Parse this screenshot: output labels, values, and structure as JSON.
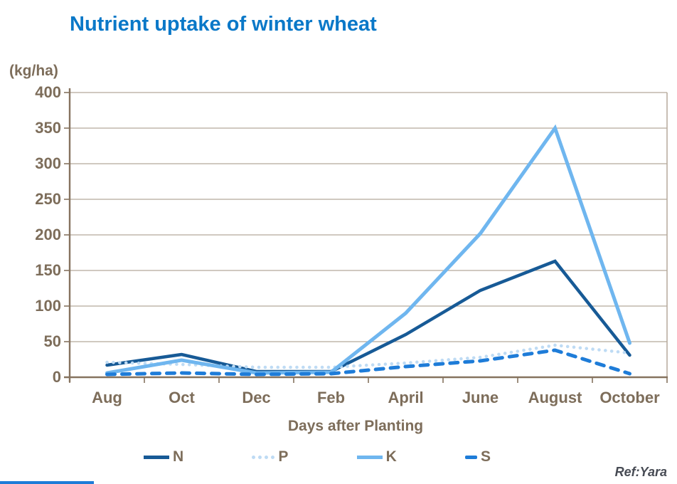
{
  "chart_data": {
    "type": "line",
    "title": "Nutrient uptake of winter wheat",
    "xlabel": "Days after Planting",
    "ylabel": "(kg/ha)",
    "categories": [
      "Aug",
      "Oct",
      "Dec",
      "Feb",
      "April",
      "June",
      "August",
      "October"
    ],
    "series": [
      {
        "name": "N",
        "color": "#175a96",
        "dash": "solid",
        "values": [
          17,
          32,
          8,
          8,
          60,
          122,
          163,
          31
        ]
      },
      {
        "name": "P",
        "color": "#bedbf4",
        "dash": "dotted",
        "values": [
          21,
          18,
          14,
          14,
          20,
          28,
          45,
          34
        ]
      },
      {
        "name": "K",
        "color": "#6fb6ef",
        "dash": "solid",
        "values": [
          6,
          24,
          6,
          7,
          90,
          202,
          350,
          48
        ]
      },
      {
        "name": "S",
        "color": "#1e7cd8",
        "dash": "dashed",
        "values": [
          4,
          6,
          4,
          5,
          15,
          23,
          38,
          5
        ]
      }
    ],
    "ylim": [
      0,
      400
    ],
    "ytick_step": 50,
    "yticks": [
      0,
      50,
      100,
      150,
      200,
      250,
      300,
      350,
      400
    ],
    "grid": true,
    "legend_position": "bottom",
    "source": "Ref:Yara"
  },
  "footer": {
    "ref": "Ref:Yara"
  },
  "colors": {
    "title_text": "#0a78c8",
    "axis_text": "#7d6d5a",
    "grid_line": "#b5a99b",
    "axis_line": "#86735f",
    "series_n": "#175a96",
    "series_p": "#bedbf4",
    "series_k": "#6fb6ef",
    "series_s": "#1e7cd8",
    "footer_line": "#1e7cd8",
    "ref_text": "#474b54"
  }
}
